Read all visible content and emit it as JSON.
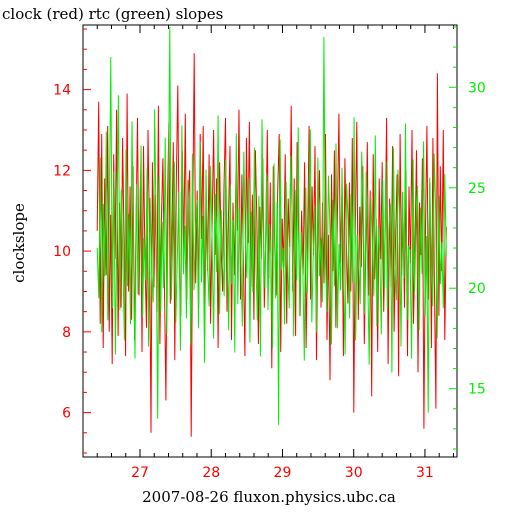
{
  "chart_data": {
    "type": "line",
    "title": "clock (red) rtc (green) slopes",
    "xlabel": "2007-08-26 fluxon.physics.ubc.ca",
    "ylabel": "clockslope",
    "x_tick_labels": [
      "27",
      "28",
      "29",
      "30",
      "31"
    ],
    "x_ticks": [
      27,
      28,
      29,
      30,
      31
    ],
    "xlim": [
      26.2,
      31.45
    ],
    "y_left": {
      "lim": [
        4.9,
        15.6
      ],
      "ticks": [
        6,
        8,
        10,
        12,
        14
      ],
      "tick_labels": [
        "6",
        "8",
        "10",
        "12",
        "14"
      ],
      "color": "#ff0000"
    },
    "y_right": {
      "lim": [
        11.6,
        33.1
      ],
      "ticks": [
        15,
        20,
        25,
        30
      ],
      "tick_labels": [
        "15",
        "20",
        "25",
        "30"
      ],
      "color": "#00ee00"
    },
    "grid": false,
    "series": [
      {
        "name": "clock",
        "axis": "left",
        "color": "#ff0000",
        "x_start": 26.4,
        "x_end": 31.3,
        "values": [
          10.5,
          13.7,
          8.2,
          12.9,
          7.6,
          11.8,
          9.4,
          13.1,
          8.0,
          10.9,
          7.2,
          12.4,
          9.8,
          13.5,
          7.9,
          11.2,
          8.6,
          12.8,
          10.1,
          7.4,
          13.9,
          9.0,
          11.6,
          8.3,
          12.1,
          7.8,
          10.6,
          13.3,
          8.9,
          11.9,
          7.5,
          12.6,
          9.7,
          8.1,
          13.0,
          10.4,
          5.5,
          12.2,
          9.1,
          11.4,
          8.5,
          13.6,
          7.7,
          10.8,
          12.3,
          9.3,
          6.3,
          11.1,
          13.2,
          8.7,
          10.2,
          12.7,
          7.3,
          11.7,
          14.1,
          9.6,
          8.4,
          12.5,
          10.0,
          13.4,
          8.8,
          11.3,
          12.0,
          5.4,
          10.7,
          14.9,
          9.2,
          11.5,
          8.6,
          12.9,
          10.3,
          13.1,
          7.9,
          11.0,
          9.5,
          12.4,
          8.2,
          10.6,
          13.0,
          9.9,
          11.8,
          7.6,
          12.2,
          10.1,
          9.0,
          11.6,
          13.3,
          8.5,
          10.9,
          12.6,
          7.8,
          11.2,
          9.4,
          12.0,
          10.5,
          13.5,
          8.8,
          11.9,
          9.7,
          7.4,
          12.8,
          10.2,
          13.2,
          9.1,
          11.4,
          8.3,
          12.5,
          10.7,
          7.7,
          11.1,
          9.8,
          12.3,
          8.6,
          10.4,
          13.0,
          9.3,
          11.7,
          7.1,
          12.1,
          10.0,
          8.9,
          11.5,
          12.9,
          7.5,
          10.8,
          9.6,
          12.4,
          8.2,
          11.3,
          10.1,
          13.6,
          9.0,
          11.8,
          7.9,
          12.7,
          10.5,
          8.4,
          11.0,
          9.4,
          12.2,
          7.6,
          10.3,
          13.1,
          8.8,
          11.6,
          9.9,
          12.6,
          7.3,
          10.7,
          12.0,
          8.6,
          11.2,
          9.2,
          12.9,
          7.8,
          10.4,
          6.8,
          11.9,
          9.5,
          12.5,
          8.1,
          10.9,
          13.4,
          9.7,
          11.4,
          7.4,
          12.3,
          10.2,
          8.7,
          11.7,
          9.0,
          12.8,
          6.0,
          10.6,
          13.2,
          8.3,
          11.1,
          9.6,
          12.1,
          7.7,
          10.0,
          12.7,
          8.9,
          11.5,
          6.4,
          12.4,
          9.3,
          10.8,
          7.5,
          11.8,
          9.8,
          12.2,
          8.5,
          10.5,
          13.3,
          7.2,
          11.3,
          9.1,
          12.6,
          8.0,
          10.3,
          11.9,
          6.9,
          12.9,
          9.4,
          10.7,
          8.6,
          12.0,
          7.4,
          11.6,
          9.7,
          13.0,
          8.2,
          10.1,
          12.5,
          7.0,
          11.2,
          9.9,
          12.3,
          5.6,
          10.4,
          13.1,
          8.8,
          11.7,
          7.6,
          12.8,
          9.2,
          6.1,
          14.4,
          8.4,
          12.1,
          9.5,
          13.0,
          7.8,
          10.6
        ]
      },
      {
        "name": "rtc",
        "axis": "right",
        "color": "#00ee00",
        "x_start": 26.4,
        "x_end": 31.3,
        "values": [
          22.0,
          19.5,
          26.5,
          17.8,
          24.2,
          20.6,
          27.8,
          18.4,
          23.5,
          31.5,
          19.0,
          25.8,
          16.7,
          22.8,
          29.6,
          18.9,
          24.9,
          21.3,
          17.4,
          26.9,
          20.1,
          23.7,
          18.2,
          28.3,
          21.8,
          16.5,
          25.2,
          19.7,
          23.0,
          27.1,
          18.6,
          22.5,
          20.4,
          26.0,
          17.1,
          24.5,
          21.0,
          19.3,
          28.9,
          22.2,
          13.5,
          25.6,
          18.8,
          23.3,
          20.0,
          27.5,
          17.7,
          24.1,
          33.0,
          19.4,
          22.6,
          26.3,
          18.3,
          21.5,
          24.8,
          16.9,
          28.1,
          20.7,
          23.1,
          18.5,
          25.4,
          21.9,
          17.2,
          26.7,
          19.9,
          22.9,
          24.4,
          18.0,
          27.3,
          20.3,
          23.6,
          16.3,
          25.9,
          21.1,
          19.1,
          26.1,
          22.4,
          17.5,
          24.7,
          20.8,
          28.6,
          18.7,
          23.9,
          21.4,
          19.6,
          26.4,
          22.1,
          17.9,
          25.1,
          20.2,
          23.4,
          16.8,
          27.7,
          19.2,
          24.0,
          21.7,
          18.1,
          26.8,
          22.7,
          20.5,
          25.5,
          17.3,
          23.8,
          19.8,
          27.0,
          21.2,
          18.4,
          24.6,
          16.6,
          28.4,
          22.3,
          20.0,
          25.7,
          18.9,
          23.2,
          21.6,
          17.0,
          26.2,
          19.5,
          24.3,
          13.2,
          27.4,
          20.9,
          22.0,
          18.2,
          25.3,
          21.3,
          19.0,
          26.6,
          23.5,
          17.6,
          24.9,
          20.4,
          28.0,
          18.6,
          22.8,
          21.0,
          16.4,
          25.0,
          19.7,
          23.7,
          27.9,
          18.3,
          21.8,
          24.1,
          17.8,
          26.5,
          20.6,
          22.5,
          19.3,
          32.5,
          21.5,
          18.8,
          25.6,
          23.0,
          17.2,
          24.4,
          20.1,
          27.2,
          18.0,
          22.2,
          19.9,
          26.0,
          21.1,
          16.7,
          25.2,
          23.3,
          18.5,
          24.7,
          20.3,
          28.5,
          17.4,
          22.7,
          21.4,
          19.2,
          26.8,
          23.9,
          18.7,
          25.8,
          20.8,
          16.2,
          24.5,
          22.4,
          19.6,
          27.6,
          18.1,
          23.1,
          21.7,
          17.7,
          25.4,
          20.0,
          26.3,
          18.9,
          22.9,
          24.2,
          15.8,
          27.0,
          21.2,
          19.4,
          25.9,
          23.6,
          17.1,
          24.8,
          20.5,
          28.2,
          18.4,
          22.1,
          21.9,
          16.5,
          26.4,
          19.8,
          23.4,
          25.1,
          17.9,
          24.0,
          20.7,
          27.3,
          18.6,
          22.6,
          13.8,
          25.5,
          21.3,
          19.1,
          26.7,
          23.8,
          17.5,
          24.6,
          20.2,
          22.3,
          19.0,
          25.7,
          21.6
        ]
      }
    ]
  }
}
